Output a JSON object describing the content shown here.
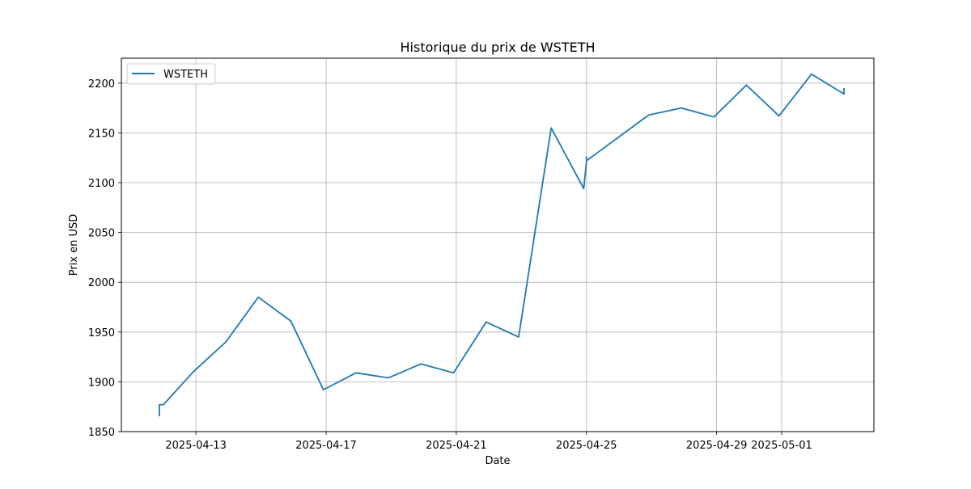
{
  "chart_data": {
    "type": "line",
    "title": "Historique du prix de WSTETH",
    "xlabel": "Date",
    "ylabel": "Prix en USD",
    "xlim": [
      "2025-04-10T17:00",
      "2025-05-03T20:00"
    ],
    "ylim": [
      1850,
      2225
    ],
    "x_ticks": [
      {
        "value": "2025-04-13",
        "label": "2025-04-13"
      },
      {
        "value": "2025-04-17",
        "label": "2025-04-17"
      },
      {
        "value": "2025-04-21",
        "label": "2025-04-21"
      },
      {
        "value": "2025-04-25",
        "label": "2025-04-25"
      },
      {
        "value": "2025-04-29",
        "label": "2025-04-29"
      },
      {
        "value": "2025-05-01",
        "label": "2025-05-01"
      }
    ],
    "y_ticks": [
      1850,
      1900,
      1950,
      2000,
      2050,
      2100,
      2150,
      2200
    ],
    "grid": true,
    "legend_position": "top-left",
    "series": [
      {
        "name": "WSTETH",
        "color": "#1f77b4",
        "points": [
          {
            "x": "2025-04-11T21:00",
            "y": 1868
          },
          {
            "x": "2025-04-11T21:00",
            "y": 1871
          },
          {
            "x": "2025-04-11T21:00",
            "y": 1866
          },
          {
            "x": "2025-04-11T21:00",
            "y": 1877
          },
          {
            "x": "2025-04-12T00:00",
            "y": 1877
          },
          {
            "x": "2025-04-12T22:00",
            "y": 1910
          },
          {
            "x": "2025-04-13T22:00",
            "y": 1940
          },
          {
            "x": "2025-04-14T22:00",
            "y": 1985
          },
          {
            "x": "2025-04-15T22:00",
            "y": 1961
          },
          {
            "x": "2025-04-16T22:00",
            "y": 1892
          },
          {
            "x": "2025-04-17T22:00",
            "y": 1909
          },
          {
            "x": "2025-04-18T22:00",
            "y": 1904
          },
          {
            "x": "2025-04-19T22:00",
            "y": 1918
          },
          {
            "x": "2025-04-20T22:00",
            "y": 1909
          },
          {
            "x": "2025-04-21T22:00",
            "y": 1960
          },
          {
            "x": "2025-04-22T22:00",
            "y": 1945
          },
          {
            "x": "2025-04-23T22:00",
            "y": 2155
          },
          {
            "x": "2025-04-24T22:00",
            "y": 2094
          },
          {
            "x": "2025-04-25T00:00",
            "y": 2121
          },
          {
            "x": "2025-04-25T00:00",
            "y": 2126
          },
          {
            "x": "2025-04-25T00:00",
            "y": 2122
          },
          {
            "x": "2025-04-25T09:00",
            "y": 2131
          },
          {
            "x": "2025-04-26T22:00",
            "y": 2168
          },
          {
            "x": "2025-04-27T22:00",
            "y": 2175
          },
          {
            "x": "2025-04-28T22:00",
            "y": 2166
          },
          {
            "x": "2025-04-29T22:00",
            "y": 2198
          },
          {
            "x": "2025-04-30T22:00",
            "y": 2167
          },
          {
            "x": "2025-05-01T22:00",
            "y": 2209
          },
          {
            "x": "2025-05-02T22:00",
            "y": 2189
          },
          {
            "x": "2025-05-02T22:00",
            "y": 2195
          }
        ]
      }
    ]
  }
}
